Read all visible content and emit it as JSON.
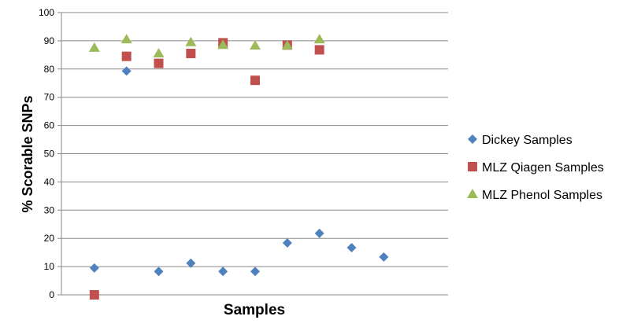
{
  "chart_data": {
    "type": "scatter",
    "title": "",
    "xlabel": "Samples",
    "ylabel": "% Scorable SNPs",
    "xlim": [
      0,
      12
    ],
    "ylim": [
      0,
      100
    ],
    "yticks": [
      0,
      10,
      20,
      30,
      40,
      50,
      60,
      70,
      80,
      90,
      100
    ],
    "grid": "horizontal",
    "legend_position": "right",
    "series": [
      {
        "name": "Dickey Samples",
        "marker": "diamond",
        "color": "#4F81BD",
        "x": [
          1,
          2,
          3,
          4,
          5,
          6,
          7,
          8,
          9,
          10
        ],
        "y": [
          9.5,
          79.3,
          8.3,
          11.2,
          8.3,
          8.3,
          18.4,
          21.8,
          16.7,
          13.4
        ]
      },
      {
        "name": "MLZ Qiagen Samples",
        "marker": "square",
        "color": "#C0504D",
        "x": [
          1,
          2,
          3,
          4,
          5,
          6,
          7,
          8
        ],
        "y": [
          0,
          84.5,
          82,
          85.5,
          89.3,
          76,
          88.5,
          86.8
        ]
      },
      {
        "name": "MLZ Phenol Samples",
        "marker": "triangle",
        "color": "#9BBB59",
        "x": [
          1,
          2,
          3,
          4,
          5,
          6,
          7,
          8
        ],
        "y": [
          87.5,
          90.5,
          85.5,
          89.5,
          88.5,
          88.3,
          88.3,
          90.5
        ]
      }
    ]
  }
}
